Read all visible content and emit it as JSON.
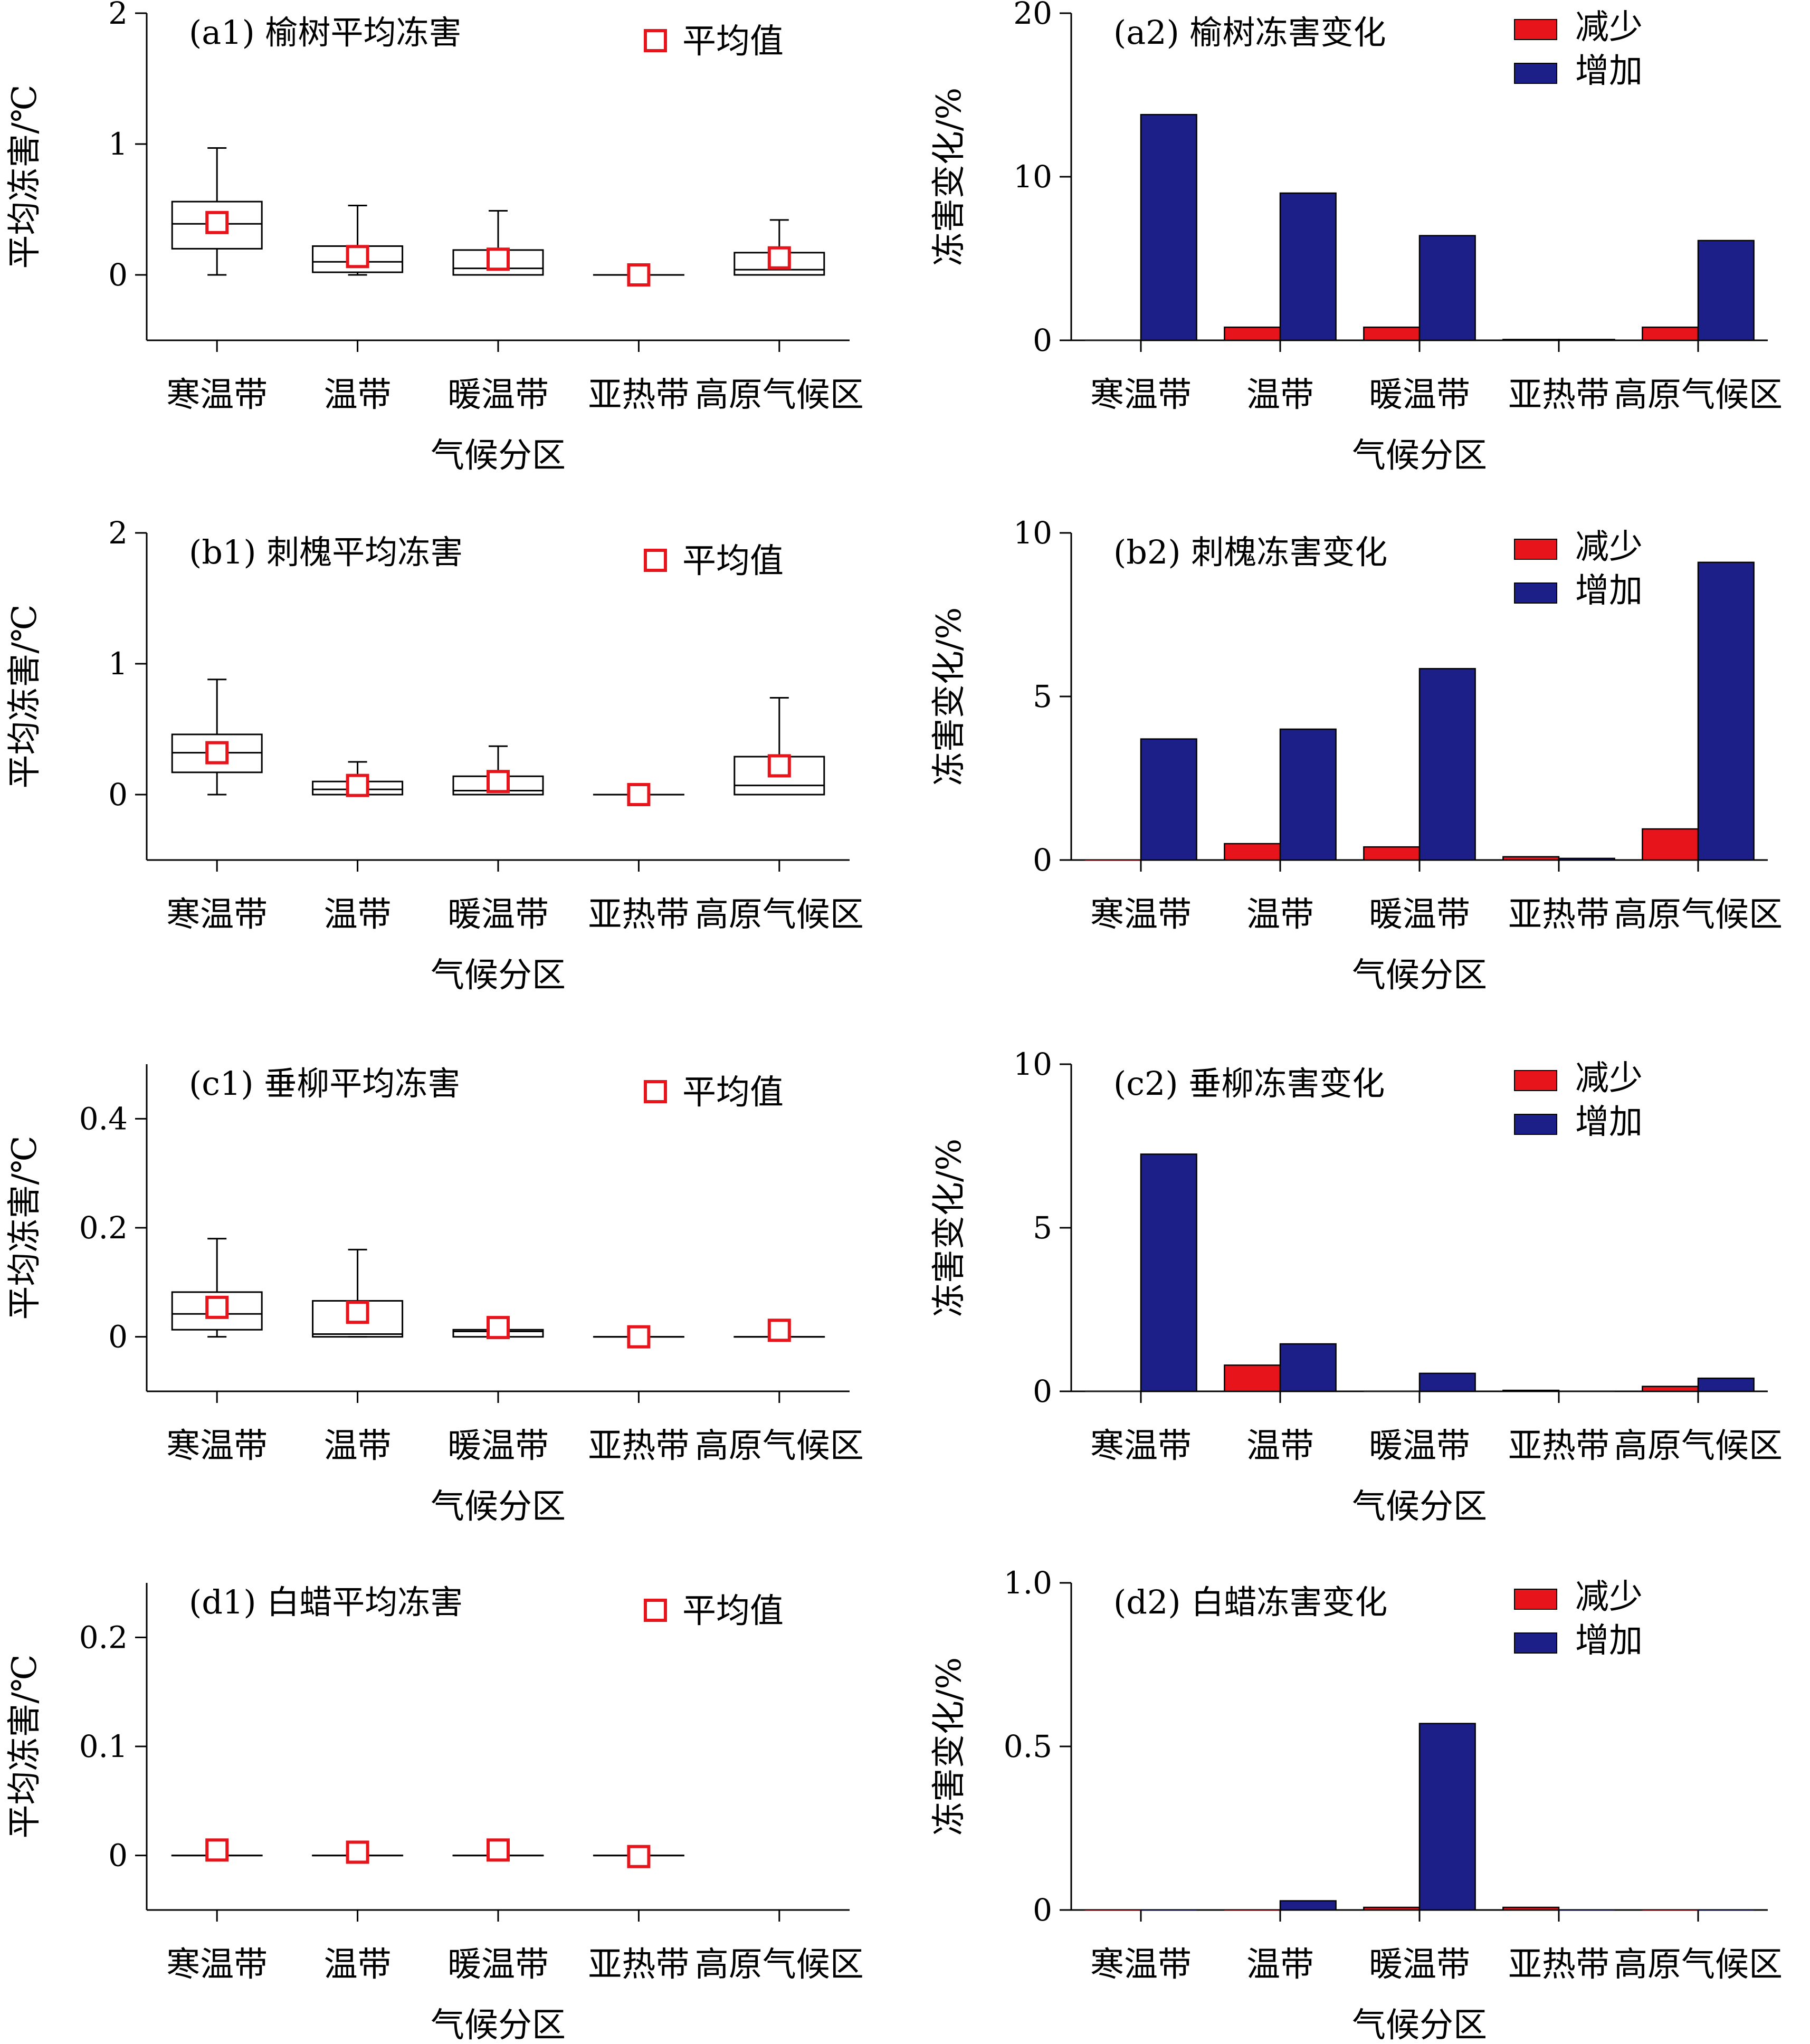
{
  "figure": {
    "xlabel": "气候分区"
  },
  "chart_data": [
    {
      "id": "a1",
      "type": "box",
      "title": "(a1) 榆树平均冻害",
      "ylabel": "平均冻害/℃",
      "xlabel": "气候分区",
      "categories": [
        "寒温带",
        "温带",
        "暖温带",
        "亚热带",
        "高原气候区"
      ],
      "ylim": [
        -0.5,
        2
      ],
      "yticks": [
        0,
        1,
        2
      ],
      "yticklabels": [
        "0",
        "1",
        "2"
      ],
      "legend": {
        "mean": "平均值"
      },
      "boxes": [
        {
          "min": 0,
          "q1": 0.2,
          "median": 0.39,
          "q3": 0.56,
          "max": 0.97,
          "mean": 0.4
        },
        {
          "min": 0,
          "q1": 0.02,
          "median": 0.1,
          "q3": 0.22,
          "max": 0.53,
          "mean": 0.14
        },
        {
          "min": 0,
          "q1": 0,
          "median": 0.05,
          "q3": 0.19,
          "max": 0.49,
          "mean": 0.12
        },
        {
          "min": 0,
          "q1": 0,
          "median": 0,
          "q3": 0,
          "max": 0,
          "mean": 0
        },
        {
          "min": 0,
          "q1": 0,
          "median": 0.04,
          "q3": 0.17,
          "max": 0.42,
          "mean": 0.13
        }
      ]
    },
    {
      "id": "a2",
      "type": "bar",
      "title": "(a2) 榆树冻害变化",
      "ylabel": "冻害变化/%",
      "xlabel": "气候分区",
      "categories": [
        "寒温带",
        "温带",
        "暖温带",
        "亚热带",
        "高原气候区"
      ],
      "ylim": [
        0,
        20
      ],
      "yticks": [
        0,
        10,
        20
      ],
      "yticklabels": [
        "0",
        "10",
        "20"
      ],
      "series": [
        {
          "name": "减少",
          "color": "#e8141b",
          "values": [
            0,
            0.8,
            0.8,
            0.05,
            0.8
          ]
        },
        {
          "name": "增加",
          "color": "#1c1f88",
          "values": [
            13.8,
            9.0,
            6.4,
            0.05,
            6.1
          ]
        }
      ]
    },
    {
      "id": "b1",
      "type": "box",
      "title": "(b1) 刺槐平均冻害",
      "ylabel": "平均冻害/℃",
      "xlabel": "气候分区",
      "categories": [
        "寒温带",
        "温带",
        "暖温带",
        "亚热带",
        "高原气候区"
      ],
      "ylim": [
        -0.5,
        2
      ],
      "yticks": [
        0,
        1,
        2
      ],
      "yticklabels": [
        "0",
        "1",
        "2"
      ],
      "legend": {
        "mean": "平均值"
      },
      "boxes": [
        {
          "min": 0,
          "q1": 0.17,
          "median": 0.32,
          "q3": 0.46,
          "max": 0.88,
          "mean": 0.32
        },
        {
          "min": 0,
          "q1": 0,
          "median": 0.04,
          "q3": 0.1,
          "max": 0.25,
          "mean": 0.07
        },
        {
          "min": 0,
          "q1": 0,
          "median": 0.03,
          "q3": 0.14,
          "max": 0.37,
          "mean": 0.1
        },
        {
          "min": 0,
          "q1": 0,
          "median": 0,
          "q3": 0,
          "max": 0,
          "mean": 0
        },
        {
          "min": 0,
          "q1": 0,
          "median": 0.07,
          "q3": 0.29,
          "max": 0.74,
          "mean": 0.22
        }
      ]
    },
    {
      "id": "b2",
      "type": "bar",
      "title": "(b2) 刺槐冻害变化",
      "ylabel": "冻害变化/%",
      "xlabel": "气候分区",
      "categories": [
        "寒温带",
        "温带",
        "暖温带",
        "亚热带",
        "高原气候区"
      ],
      "ylim": [
        0,
        10
      ],
      "yticks": [
        0,
        5,
        10
      ],
      "yticklabels": [
        "0",
        "5",
        "10"
      ],
      "series": [
        {
          "name": "减少",
          "color": "#e8141b",
          "values": [
            0,
            0.5,
            0.4,
            0.1,
            0.95
          ]
        },
        {
          "name": "增加",
          "color": "#1c1f88",
          "values": [
            3.7,
            4.0,
            5.85,
            0.05,
            9.1
          ]
        }
      ]
    },
    {
      "id": "c1",
      "type": "box",
      "title": "(c1) 垂柳平均冻害",
      "ylabel": "平均冻害/℃",
      "xlabel": "气候分区",
      "categories": [
        "寒温带",
        "温带",
        "暖温带",
        "亚热带",
        "高原气候区"
      ],
      "ylim": [
        -0.1,
        0.5
      ],
      "yticks": [
        0,
        0.2,
        0.4
      ],
      "yticklabels": [
        "0",
        "0.2",
        "0.4"
      ],
      "legend": {
        "mean": "平均值"
      },
      "boxes": [
        {
          "min": 0,
          "q1": 0.013,
          "median": 0.042,
          "q3": 0.082,
          "max": 0.18,
          "mean": 0.054
        },
        {
          "min": 0,
          "q1": 0,
          "median": 0.005,
          "q3": 0.066,
          "max": 0.16,
          "mean": 0.045
        },
        {
          "min": 0,
          "q1": 0,
          "median": 0.01,
          "q3": 0.013,
          "max": 0.013,
          "mean": 0.017
        },
        {
          "min": 0,
          "q1": 0,
          "median": 0,
          "q3": 0,
          "max": 0,
          "mean": 0
        },
        {
          "min": 0,
          "q1": 0,
          "median": 0,
          "q3": 0,
          "max": 0,
          "mean": 0.012
        }
      ]
    },
    {
      "id": "c2",
      "type": "bar",
      "title": "(c2) 垂柳冻害变化",
      "ylabel": "冻害变化/%",
      "xlabel": "气候分区",
      "categories": [
        "寒温带",
        "温带",
        "暖温带",
        "亚热带",
        "高原气候区"
      ],
      "ylim": [
        0,
        10
      ],
      "yticks": [
        0,
        5,
        10
      ],
      "yticklabels": [
        "0",
        "5",
        "10"
      ],
      "series": [
        {
          "name": "减少",
          "color": "#e8141b",
          "values": [
            0,
            0.8,
            0,
            0.03,
            0.15
          ]
        },
        {
          "name": "增加",
          "color": "#1c1f88",
          "values": [
            7.25,
            1.45,
            0.55,
            0,
            0.4
          ]
        }
      ]
    },
    {
      "id": "d1",
      "type": "box",
      "title": "(d1) 白蜡平均冻害",
      "ylabel": "平均冻害/℃",
      "xlabel": "气候分区",
      "categories": [
        "寒温带",
        "温带",
        "暖温带",
        "亚热带",
        "高原气候区"
      ],
      "ylim": [
        -0.05,
        0.25
      ],
      "yticks": [
        0,
        0.1,
        0.2
      ],
      "yticklabels": [
        "0",
        "0.1",
        "0.2"
      ],
      "legend": {
        "mean": "平均值"
      },
      "boxes": [
        {
          "min": 0,
          "q1": 0,
          "median": 0,
          "q3": 0,
          "max": 0,
          "mean": 0.005
        },
        {
          "min": 0,
          "q1": 0,
          "median": 0,
          "q3": 0,
          "max": 0,
          "mean": 0.003
        },
        {
          "min": 0,
          "q1": 0,
          "median": 0,
          "q3": 0,
          "max": 0,
          "mean": 0.005
        },
        {
          "min": 0,
          "q1": 0,
          "median": 0,
          "q3": 0,
          "max": 0,
          "mean": -0.001
        },
        null
      ]
    },
    {
      "id": "d2",
      "type": "bar",
      "title": "(d2) 白蜡冻害变化",
      "ylabel": "冻害变化/%",
      "xlabel": "气候分区",
      "categories": [
        "寒温带",
        "温带",
        "暖温带",
        "亚热带",
        "高原气候区"
      ],
      "ylim": [
        0,
        1
      ],
      "yticks": [
        0,
        0.5,
        1
      ],
      "yticklabels": [
        "0",
        "0.5",
        "1.0"
      ],
      "series": [
        {
          "name": "减少",
          "color": "#e8141b",
          "values": [
            0,
            0,
            0.008,
            0.008,
            0
          ]
        },
        {
          "name": "增加",
          "color": "#1c1f88",
          "values": [
            0,
            0.028,
            0.57,
            0,
            0
          ]
        }
      ]
    }
  ]
}
